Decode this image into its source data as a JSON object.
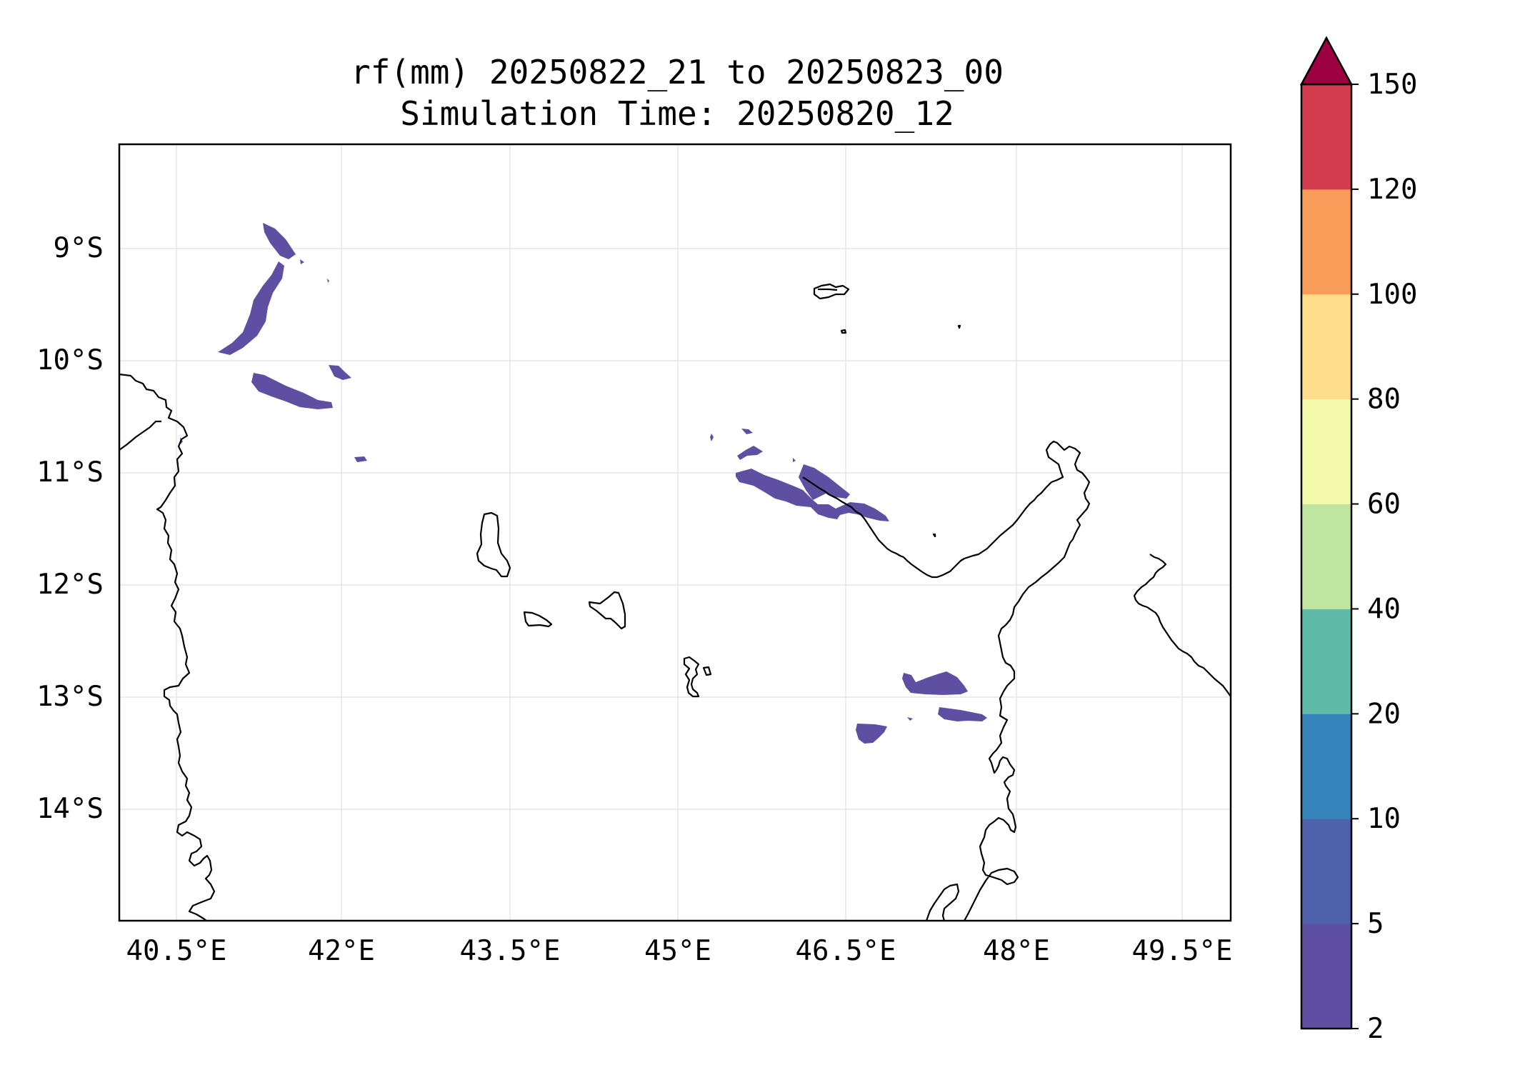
{
  "title": {
    "line1": "rf(mm) 20250822_21 to 20250823_00",
    "line2": "Simulation Time: 20250820_12"
  },
  "map": {
    "x_ticks": [
      "40.5°E",
      "42°E",
      "43.5°E",
      "45°E",
      "46.5°E",
      "48°E",
      "49.5°E"
    ],
    "y_ticks": [
      "9°S",
      "10°S",
      "11°S",
      "12°S",
      "13°S",
      "14°S"
    ],
    "lon_range": [
      40.0,
      49.9
    ],
    "lat_range": [
      -15.0,
      -8.1
    ],
    "gridlines": true,
    "coastline_color": "#000000",
    "rain_color": "#5e4fa2"
  },
  "colorbar": {
    "labels": [
      "2",
      "5",
      "10",
      "20",
      "40",
      "60",
      "80",
      "100",
      "120",
      "150"
    ],
    "colors": [
      "#5e4fa2",
      "#4f61ab",
      "#3682ba",
      "#5fbaa8",
      "#bfe5a0",
      "#f2f9ab",
      "#fddd8c",
      "#f99c59",
      "#d43d4f"
    ],
    "extend_color": "#9e0142",
    "extend": "max"
  }
}
